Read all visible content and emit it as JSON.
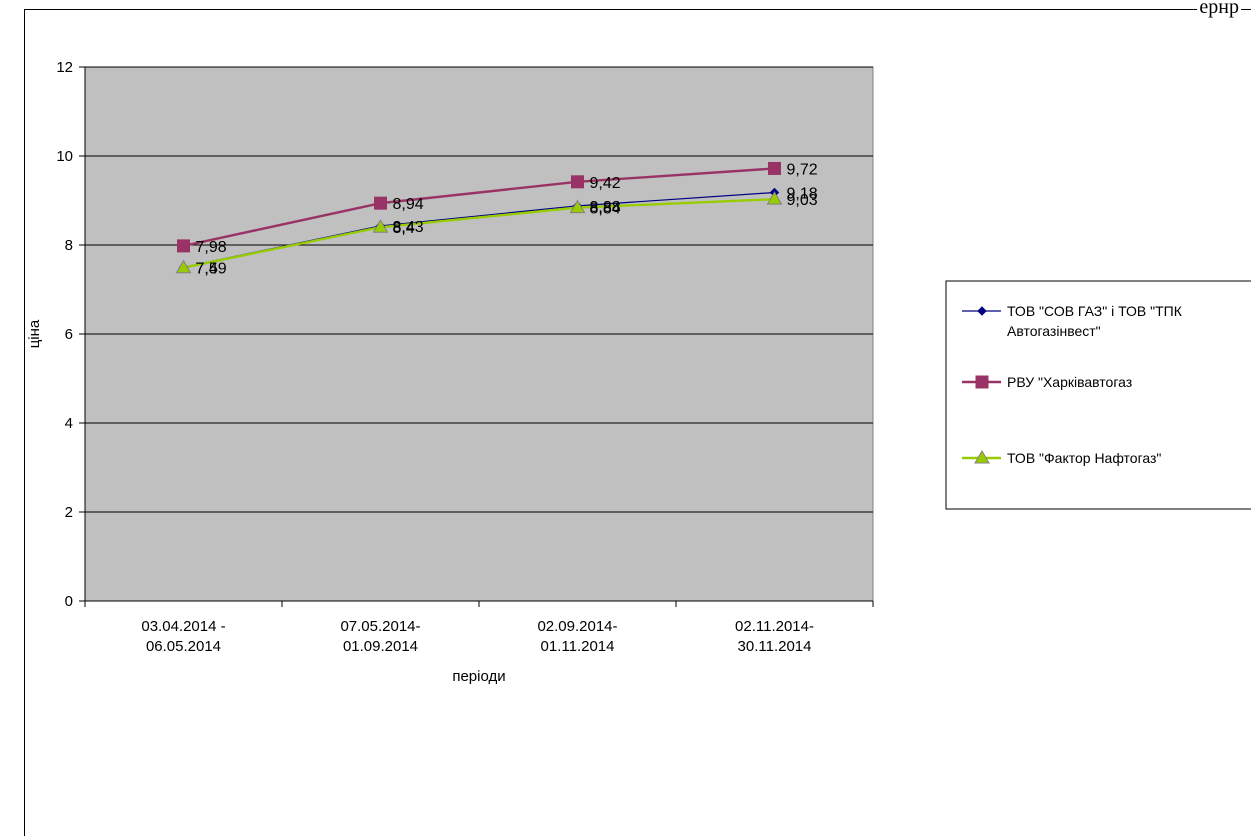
{
  "header": {
    "top_right_text": "ернр"
  },
  "chart_data": {
    "type": "line",
    "title": "",
    "xlabel": "періоди",
    "ylabel": "ціна",
    "ylim": [
      0,
      12
    ],
    "yticks": [
      0,
      2,
      4,
      6,
      8,
      10,
      12
    ],
    "grid": true,
    "plot_background": "#c0c0c0",
    "legend_position": "right",
    "categories": [
      [
        "03.04.2014 -",
        "06.05.2014"
      ],
      [
        "07.05.2014-",
        "01.09.2014"
      ],
      [
        "02.09.2014-",
        "01.11.2014"
      ],
      [
        "02.11.2014-",
        "30.11.2014"
      ]
    ],
    "series": [
      {
        "name": "ТОВ \"СОВ ГАЗ\" і ТОВ \"ТПК Автогазінвест\"",
        "legend_lines": [
          "ТОВ \"СОВ ГАЗ\" і ТОВ \"ТПК",
          "Автогазінвест\""
        ],
        "values": [
          7.5,
          8.43,
          8.88,
          9.18
        ],
        "labels": [
          "7,5",
          "8,43",
          "8,88",
          "9,18"
        ],
        "color": "#000080",
        "marker": "diamond"
      },
      {
        "name": "РВУ \"Харківавтогаз",
        "legend_lines": [
          "РВУ \"Харківавтогаз"
        ],
        "values": [
          7.98,
          8.94,
          9.42,
          9.72
        ],
        "labels": [
          "7,98",
          "8,94",
          "9,42",
          "9,72"
        ],
        "color": "#993366",
        "marker": "square"
      },
      {
        "name": "ТОВ \"Фактор Нафтогаз\"",
        "legend_lines": [
          "ТОВ \"Фактор Нафтогаз\""
        ],
        "values": [
          7.49,
          8.4,
          8.84,
          9.03
        ],
        "labels": [
          "7,49",
          "8,4",
          "8,84",
          "9,03"
        ],
        "color": "#99cc00",
        "marker": "triangle"
      }
    ]
  }
}
